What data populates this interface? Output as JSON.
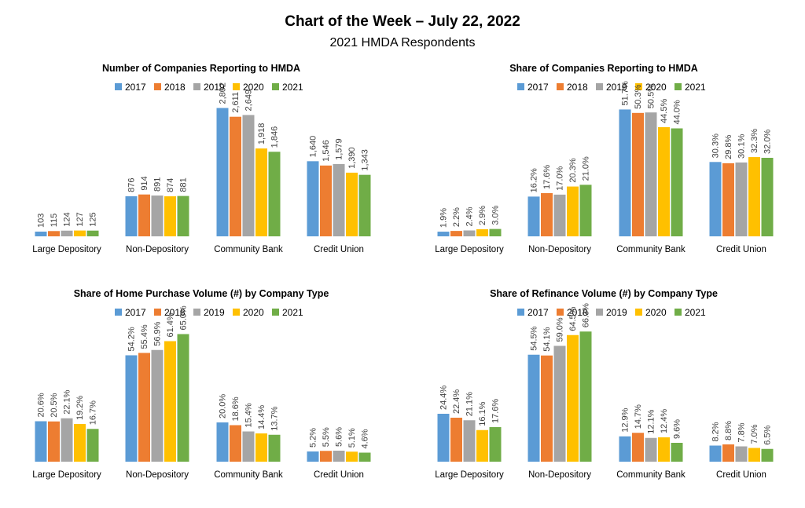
{
  "header": {
    "title": "Chart of the Week – July 22, 2022",
    "subtitle": "2021 HMDA Respondents"
  },
  "colors": {
    "2017": "#5B9BD5",
    "2018": "#ED7D31",
    "2019": "#A5A5A5",
    "2020": "#FFC000",
    "2021": "#70AD47"
  },
  "chart_data": [
    {
      "type": "bar",
      "title": "Number of Companies Reporting to HMDA",
      "categories": [
        "Large Depository",
        "Non-Depository",
        "Community Bank",
        "Credit Union"
      ],
      "ylim": [
        0,
        3000
      ],
      "legend": "top",
      "grid": false,
      "series": [
        {
          "name": "2017",
          "values": [
            103,
            876,
            2802,
            1640
          ],
          "labels": [
            "103",
            "876",
            "2,802",
            "1,640"
          ]
        },
        {
          "name": "2018",
          "values": [
            115,
            914,
            2611,
            1546
          ],
          "labels": [
            "115",
            "914",
            "2,611",
            "1,546"
          ]
        },
        {
          "name": "2019",
          "values": [
            124,
            891,
            2649,
            1579
          ],
          "labels": [
            "124",
            "891",
            "2,649",
            "1,579"
          ]
        },
        {
          "name": "2020",
          "values": [
            127,
            874,
            1918,
            1390
          ],
          "labels": [
            "127",
            "874",
            "1,918",
            "1,390"
          ]
        },
        {
          "name": "2021",
          "values": [
            125,
            881,
            1846,
            1343
          ],
          "labels": [
            "125",
            "881",
            "1,846",
            "1,343"
          ]
        }
      ]
    },
    {
      "type": "bar",
      "title": "Share of Companies Reporting to HMDA",
      "categories": [
        "Large Depository",
        "Non-Depository",
        "Community Bank",
        "Credit Union"
      ],
      "ylim": [
        0,
        56
      ],
      "legend": "top",
      "grid": false,
      "series": [
        {
          "name": "2017",
          "values": [
            1.9,
            16.2,
            51.7,
            30.3
          ],
          "labels": [
            "1.9%",
            "16.2%",
            "51.7%",
            "30.3%"
          ]
        },
        {
          "name": "2018",
          "values": [
            2.2,
            17.6,
            50.3,
            29.8
          ],
          "labels": [
            "2.2%",
            "17.6%",
            "50.3%",
            "29.8%"
          ]
        },
        {
          "name": "2019",
          "values": [
            2.4,
            17.0,
            50.5,
            30.1
          ],
          "labels": [
            "2.4%",
            "17.0%",
            "50.5%",
            "30.1%"
          ]
        },
        {
          "name": "2020",
          "values": [
            2.9,
            20.3,
            44.5,
            32.3
          ],
          "labels": [
            "2.9%",
            "20.3%",
            "44.5%",
            "32.3%"
          ]
        },
        {
          "name": "2021",
          "values": [
            3.0,
            21.0,
            44.0,
            32.0
          ],
          "labels": [
            "3.0%",
            "21.0%",
            "44.0%",
            "32.0%"
          ]
        }
      ]
    },
    {
      "type": "bar",
      "title": "Share of Home Purchase Volume (#) by Company Type",
      "categories": [
        "Large Depository",
        "Non-Depository",
        "Community Bank",
        "Credit Union"
      ],
      "ylim": [
        0,
        70
      ],
      "legend": "top",
      "grid": false,
      "series": [
        {
          "name": "2017",
          "values": [
            20.6,
            54.2,
            20.0,
            5.2
          ],
          "labels": [
            "20.6%",
            "54.2%",
            "20.0%",
            "5.2%"
          ]
        },
        {
          "name": "2018",
          "values": [
            20.5,
            55.4,
            18.6,
            5.5
          ],
          "labels": [
            "20.5%",
            "55.4%",
            "18.6%",
            "5.5%"
          ]
        },
        {
          "name": "2019",
          "values": [
            22.1,
            56.9,
            15.4,
            5.6
          ],
          "labels": [
            "22.1%",
            "56.9%",
            "15.4%",
            "5.6%"
          ]
        },
        {
          "name": "2020",
          "values": [
            19.2,
            61.4,
            14.4,
            5.1
          ],
          "labels": [
            "19.2%",
            "61.4%",
            "14.4%",
            "5.1%"
          ]
        },
        {
          "name": "2021",
          "values": [
            16.7,
            65.0,
            13.7,
            4.6
          ],
          "labels": [
            "16.7%",
            "65.0%",
            "13.7%",
            "4.6%"
          ]
        }
      ]
    },
    {
      "type": "bar",
      "title": "Share of Refinance Volume (#) by Company Type",
      "categories": [
        "Large Depository",
        "Non-Depository",
        "Community Bank",
        "Credit Union"
      ],
      "ylim": [
        0,
        70
      ],
      "legend": "top",
      "grid": false,
      "series": [
        {
          "name": "2017",
          "values": [
            24.4,
            54.5,
            12.9,
            8.2
          ],
          "labels": [
            "24.4%",
            "54.5%",
            "12.9%",
            "8.2%"
          ]
        },
        {
          "name": "2018",
          "values": [
            22.4,
            54.1,
            14.7,
            8.8
          ],
          "labels": [
            "22.4%",
            "54.1%",
            "14.7%",
            "8.8%"
          ]
        },
        {
          "name": "2019",
          "values": [
            21.1,
            59.0,
            12.1,
            7.8
          ],
          "labels": [
            "21.1%",
            "59.0%",
            "12.1%",
            "7.8%"
          ]
        },
        {
          "name": "2020",
          "values": [
            16.1,
            64.5,
            12.4,
            7.0
          ],
          "labels": [
            "16.1%",
            "64.5%",
            "12.4%",
            "7.0%"
          ]
        },
        {
          "name": "2021",
          "values": [
            17.6,
            66.3,
            9.6,
            6.5
          ],
          "labels": [
            "17.6%",
            "66.3%",
            "9.6%",
            "6.5%"
          ]
        }
      ]
    }
  ]
}
